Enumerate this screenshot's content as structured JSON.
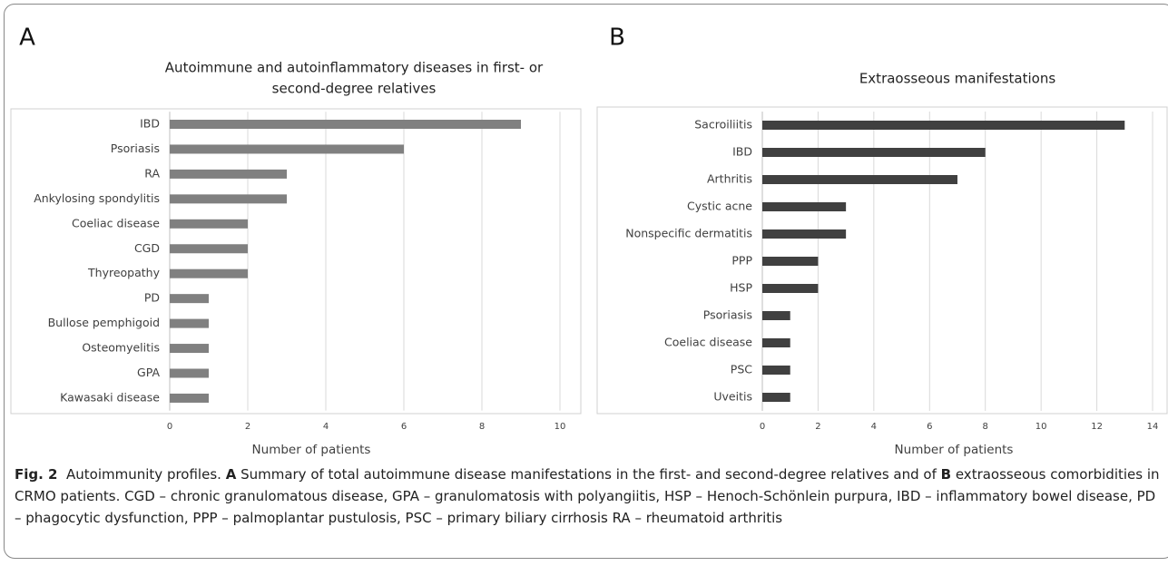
{
  "chart_data": [
    {
      "type": "barh",
      "panel": "A",
      "title": [
        "Autoimmune and autoinflammatory diseases in first- or",
        "second-degree relatives"
      ],
      "categories": [
        "IBD",
        "Psoriasis",
        "RA",
        "Ankylosing spondylitis",
        "Coeliac disease",
        "CGD",
        "Thyreopathy",
        "PD",
        "Bullose pemphigoid",
        "Osteomyelitis",
        "GPA",
        "Kawasaki disease"
      ],
      "values": [
        9,
        6,
        3,
        3,
        2,
        2,
        2,
        1,
        1,
        1,
        1,
        1
      ],
      "color": "#808080",
      "xlabel": "Number of patients",
      "xlim": [
        0,
        10
      ],
      "xticks": [
        0,
        2,
        4,
        6,
        8,
        10
      ],
      "grid": true
    },
    {
      "type": "barh",
      "panel": "B",
      "title": [
        "Extraosseous manifestations"
      ],
      "categories": [
        "Sacroiliitis",
        "IBD",
        "Arthritis",
        "Cystic acne",
        "Nonspecific dermatitis",
        "PPP",
        "HSP",
        "Psoriasis",
        "Coeliac disease",
        "PSC",
        "Uveitis"
      ],
      "values": [
        13,
        8,
        7,
        3,
        3,
        2,
        2,
        1,
        1,
        1,
        1
      ],
      "color": "#404040",
      "xlabel": "Number of patients",
      "xlim": [
        0,
        14
      ],
      "xticks": [
        0,
        2,
        4,
        6,
        8,
        10,
        12,
        14
      ],
      "grid": true
    }
  ],
  "caption": [
    {
      "text": "Fig. 2",
      "bold": true
    },
    {
      "text": "  Autoimmunity profiles. ",
      "bold": false
    },
    {
      "text": "A",
      "bold": true
    },
    {
      "text": " Summary of total autoimmune disease manifestations in the first- and second-degree relatives and of ",
      "bold": false
    },
    {
      "text": "B",
      "bold": true
    },
    {
      "text": " extraosseous comorbidities in CRMO patients. CGD – chronic granulomatous disease, GPA – granulomatosis with polyangiitis, HSP – Henoch-Schönlein purpura, IBD – inflammatory bowel disease, PD – phagocytic dysfunction, PPP – palmoplantar pustulosis, PSC – primary biliary cirrhosis RA – rheumatoid arthritis",
      "bold": false
    }
  ]
}
